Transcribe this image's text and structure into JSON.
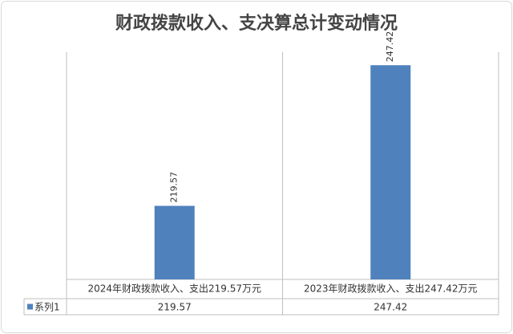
{
  "chart_data": {
    "type": "bar",
    "title": "财政拨款收入、支决算总计变动情况",
    "categories": [
      "2024年财政拨款收入、支出219.57万元",
      "2023年财政拨款收入、支出247.42万元"
    ],
    "series": [
      {
        "name": "系列1",
        "color": "#4f81bd",
        "values": [
          219.57,
          247.42
        ]
      }
    ],
    "ylim": [
      205,
      250
    ],
    "data_table": true
  }
}
